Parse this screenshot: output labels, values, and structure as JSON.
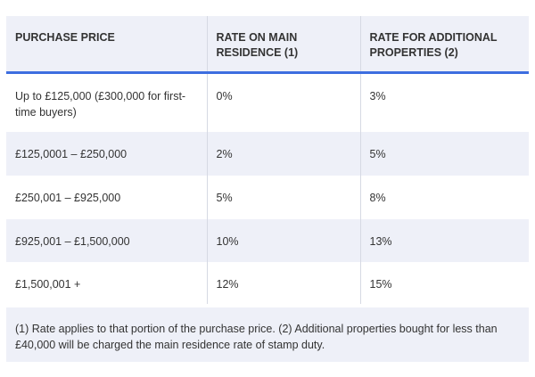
{
  "table": {
    "headers": [
      "PURCHASE PRICE",
      "RATE ON MAIN RESIDENCE (1)",
      "RATE FOR ADDITIONAL PROPERTIES (2)"
    ],
    "rows": [
      [
        "Up to £125,000 (£300,000 for first-time buyers)",
        "0%",
        "3%"
      ],
      [
        "£125,0001 – £250,000",
        "2%",
        "5%"
      ],
      [
        "£250,001 – £925,000",
        "5%",
        "8%"
      ],
      [
        "£925,001 – £1,500,000",
        "10%",
        "13%"
      ],
      [
        "£1,500,001 +",
        "12%",
        "15%"
      ]
    ]
  },
  "footnote": "(1) Rate applies to that portion of the purchase price. (2) Additional properties bought for less than £40,000 will be charged the main residence rate of stamp duty."
}
